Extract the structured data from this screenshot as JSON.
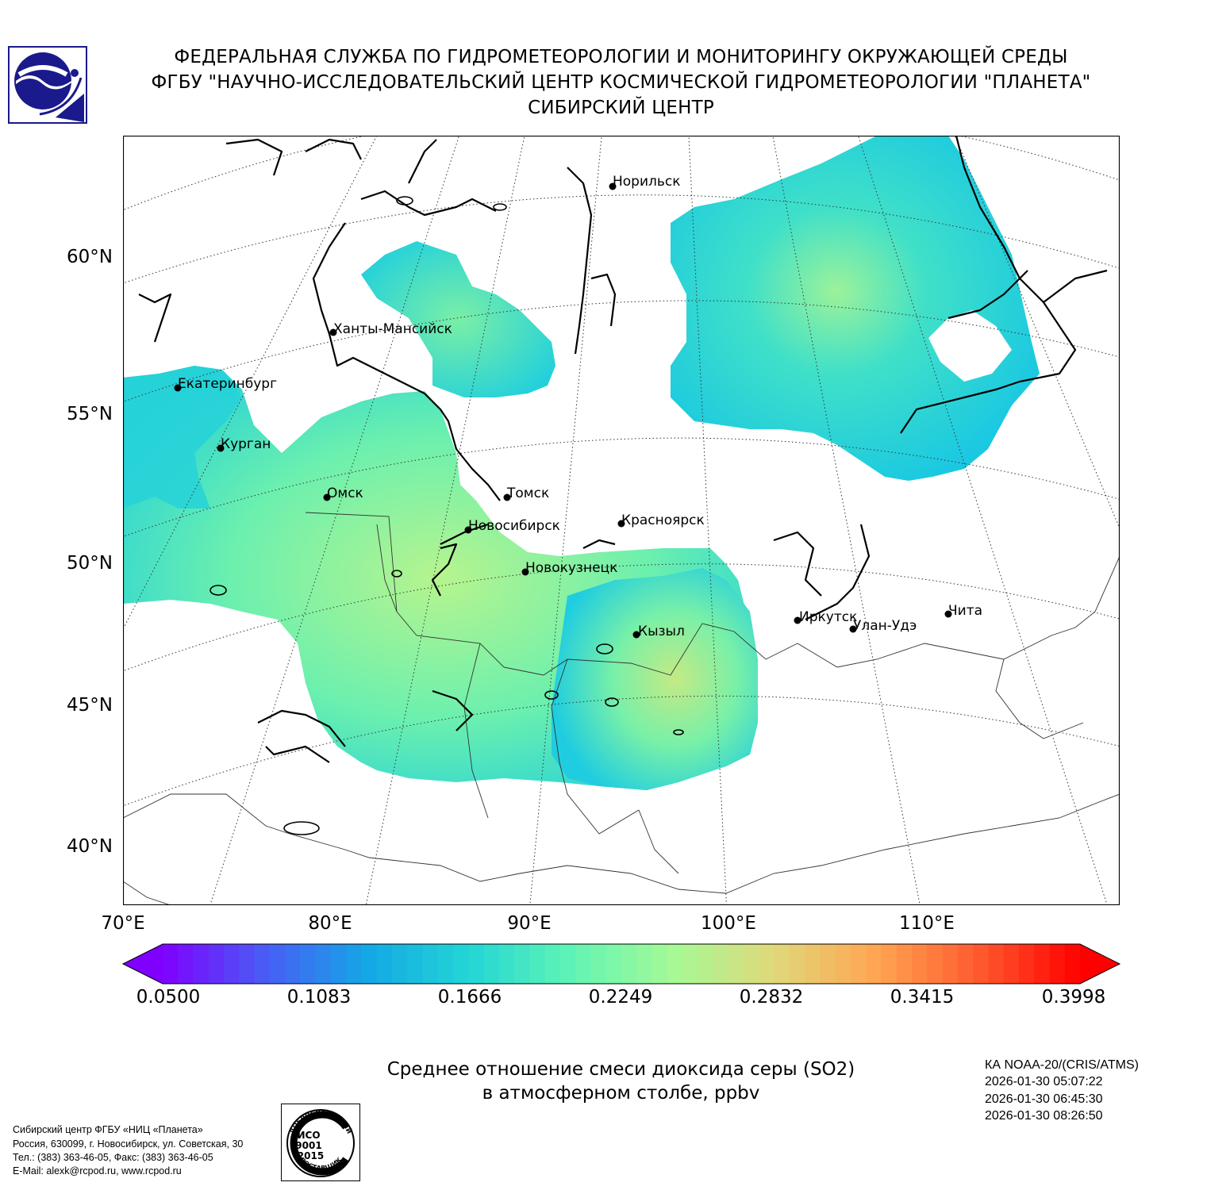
{
  "header": {
    "line1": "ФЕДЕРАЛЬНАЯ СЛУЖБА ПО ГИДРОМЕТЕОРОЛОГИИ И МОНИТОРИНГУ ОКРУЖАЮЩЕЙ СРЕДЫ",
    "line2": "ФГБУ \"НАУЧНО-ИССЛЕДОВАТЕЛЬСКИЙ ЦЕНТР КОСМИЧЕСКОЙ ГИДРОМЕТЕОРОЛОГИИ \"ПЛАНЕТА\"",
    "line3": "СИБИРСКИЙ ЦЕНТР"
  },
  "logo_icon": "roshydromet-logo",
  "map": {
    "lat_labels": [
      "60°N",
      "55°N",
      "50°N",
      "45°N",
      "40°N"
    ],
    "lon_labels": [
      "70°E",
      "80°E",
      "90°E",
      "100°E",
      "110°E"
    ],
    "cities": [
      {
        "name": "Норильск"
      },
      {
        "name": "Ханты-Мансийск"
      },
      {
        "name": "Екатеринбург"
      },
      {
        "name": "Курган"
      },
      {
        "name": "Омск"
      },
      {
        "name": "Томск"
      },
      {
        "name": "Новосибирск"
      },
      {
        "name": "Красноярск"
      },
      {
        "name": "Новокузнецк"
      },
      {
        "name": "Кызыл"
      },
      {
        "name": "Иркутск"
      },
      {
        "name": "Улан-Удэ"
      },
      {
        "name": "Чита"
      }
    ]
  },
  "colorbar": {
    "ticks": [
      "0.0500",
      "0.1083",
      "0.1666",
      "0.2249",
      "0.2832",
      "0.3415",
      "0.3998"
    ],
    "min": 0.05,
    "max": 0.3998,
    "colors": [
      "#7f00ff",
      "#4a5cf5",
      "#14a7e6",
      "#22d5d5",
      "#60f4b5",
      "#a4fa96",
      "#e0d87a",
      "#ffa552",
      "#ff5a2e",
      "#ff0000"
    ]
  },
  "caption": {
    "line1": "Среднее отношение смеси диоксида серы (SO2)",
    "line2": "в атмосферном столбе, ppbv"
  },
  "satellite": {
    "name": "КА NOAA-20/(CRIS/ATMS)",
    "times": [
      "2026-01-30 05:07:22",
      "2026-01-30 06:45:30",
      "2026-01-30 08:26:50"
    ]
  },
  "contact": {
    "line1": "Сибирский центр ФГБУ «НИЦ «Планета»",
    "line2": "Россия, 630099, г. Новосибирск, ул. Советская, 30",
    "line3": "Тел.: (383) 363-46-05, Факс: (383) 363-46-05",
    "line4": "E-Mail: alexk@rcpod.ru, www.rcpod.ru"
  },
  "iso_badge": {
    "top_text": "ДОБРОСОВЕСТНЫЙ",
    "line1": "ИСО",
    "line2": "9001",
    "line3": "-2015",
    "bottom_text": "ПОСТАВЩИК"
  }
}
